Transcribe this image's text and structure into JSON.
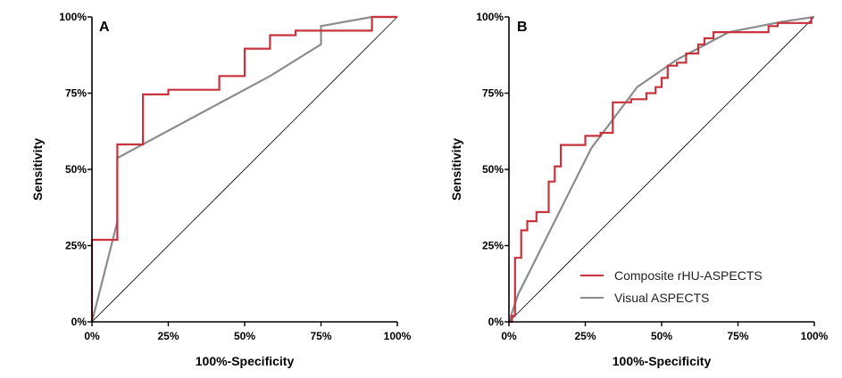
{
  "colors": {
    "composite": "#c8323c",
    "visual": "#8c8c8c",
    "diagonal": "#000000",
    "axis": "#000000"
  },
  "legend": {
    "items": [
      {
        "label": "Composite rHU-ASPECTS",
        "color": "#c8323c"
      },
      {
        "label": "Visual ASPECTS",
        "color": "#8c8c8c"
      }
    ]
  },
  "chart_data": [
    {
      "type": "line",
      "panel": "A",
      "xlabel": "100%-Specificity",
      "ylabel": "Sensitivity",
      "xlim": [
        0,
        100
      ],
      "ylim": [
        0,
        100
      ],
      "xticks": [
        "0%",
        "25%",
        "50%",
        "75%",
        "100%"
      ],
      "yticks": [
        "0%",
        "25%",
        "50%",
        "75%",
        "100%"
      ],
      "tick_values": [
        0,
        25,
        50,
        75,
        100
      ],
      "series": [
        {
          "name": "Composite rHU-ASPECTS",
          "x": [
            0,
            0,
            8.3,
            8.3,
            16.7,
            16.7,
            25,
            25,
            41.7,
            41.7,
            50,
            50,
            58.3,
            58.3,
            66.7,
            66.7,
            91.7,
            91.7,
            100
          ],
          "y": [
            0,
            26.9,
            26.9,
            58.2,
            58.2,
            74.6,
            74.6,
            76.1,
            76.1,
            80.6,
            80.6,
            89.6,
            89.6,
            94,
            94,
            95.5,
            95.5,
            100,
            100
          ]
        },
        {
          "name": "Visual ASPECTS",
          "x": [
            0,
            8.3,
            8.3,
            58.3,
            75,
            75,
            91.7,
            100
          ],
          "y": [
            0,
            32.8,
            53.7,
            80.6,
            91,
            97,
            100,
            100
          ]
        },
        {
          "name": "Reference",
          "x": [
            0,
            100
          ],
          "y": [
            0,
            100
          ]
        }
      ]
    },
    {
      "type": "line",
      "panel": "B",
      "xlabel": "100%-Specificity",
      "ylabel": "Sensitivity",
      "xlim": [
        0,
        100
      ],
      "ylim": [
        0,
        100
      ],
      "xticks": [
        "0%",
        "25%",
        "50%",
        "75%",
        "100%"
      ],
      "yticks": [
        "0%",
        "25%",
        "50%",
        "75%",
        "100%"
      ],
      "tick_values": [
        0,
        25,
        50,
        75,
        100
      ],
      "series": [
        {
          "name": "Composite rHU-ASPECTS",
          "x": [
            0,
            1,
            1,
            2,
            2,
            4,
            4,
            6,
            6,
            9,
            9,
            13,
            13,
            15,
            15,
            17,
            17,
            19,
            19,
            25,
            25,
            30,
            30,
            34,
            34,
            40,
            40,
            45,
            45,
            48,
            48,
            50,
            50,
            52,
            52,
            55,
            55,
            58,
            58,
            62,
            62,
            64,
            64,
            67,
            67,
            78,
            78,
            85,
            85,
            88,
            88,
            99,
            99
          ],
          "y": [
            0,
            0,
            2,
            2,
            21,
            21,
            30,
            30,
            33,
            33,
            36,
            36,
            46,
            46,
            51,
            51,
            58,
            58,
            58,
            58,
            61,
            61,
            62,
            62,
            72,
            72,
            73,
            73,
            75,
            75,
            77,
            77,
            80,
            80,
            84,
            84,
            85,
            85,
            88,
            88,
            91,
            91,
            93,
            93,
            95,
            95,
            95,
            95,
            97,
            97,
            98,
            98,
            100
          ]
        },
        {
          "name": "Visual ASPECTS",
          "x": [
            0,
            3,
            15,
            27,
            42,
            55,
            72,
            90,
            100
          ],
          "y": [
            0,
            9,
            33,
            57,
            77,
            86,
            95,
            98.5,
            100
          ]
        },
        {
          "name": "Reference",
          "x": [
            0,
            100
          ],
          "y": [
            0,
            100
          ]
        }
      ]
    }
  ]
}
